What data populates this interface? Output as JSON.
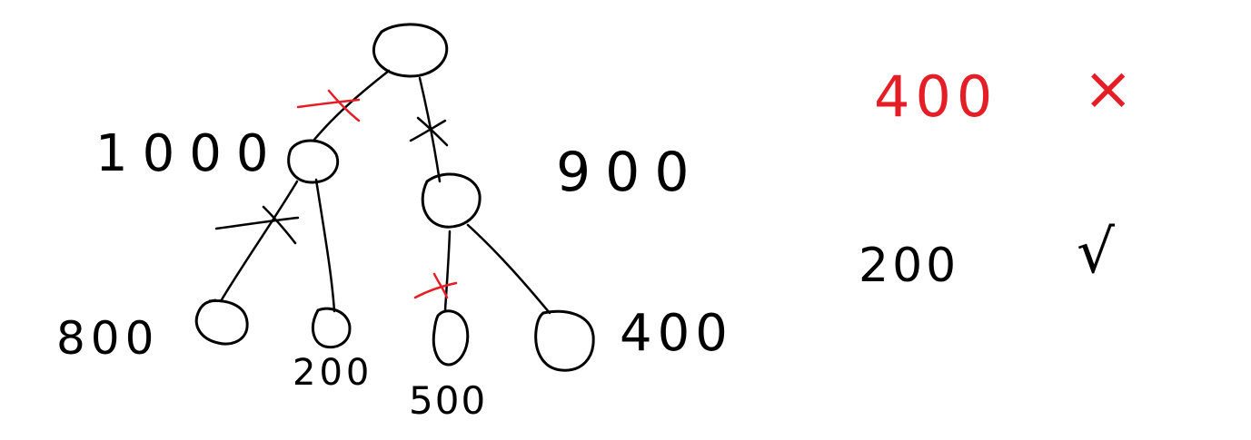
{
  "colors": {
    "ink": "#000000",
    "accent": "#e41e26",
    "background": "#ffffff"
  },
  "tree": {
    "nodes": [
      {
        "id": "root",
        "label": ""
      },
      {
        "id": "left-child",
        "label": "1000"
      },
      {
        "id": "right-child",
        "label": "900"
      },
      {
        "id": "left-left-leaf",
        "label": "800"
      },
      {
        "id": "left-right-leaf",
        "label": "200"
      },
      {
        "id": "right-left-leaf",
        "label": "500"
      },
      {
        "id": "right-right-leaf",
        "label": "400"
      }
    ],
    "edges": [
      {
        "from": "root",
        "to": "left-child",
        "crossed": true,
        "cross_color": "accent"
      },
      {
        "from": "root",
        "to": "right-child",
        "crossed": true,
        "cross_color": "ink"
      },
      {
        "from": "left-child",
        "to": "left-left-leaf",
        "crossed": true,
        "cross_color": "ink"
      },
      {
        "from": "left-child",
        "to": "left-right-leaf",
        "crossed": false
      },
      {
        "from": "right-child",
        "to": "right-left-leaf",
        "crossed": true,
        "cross_color": "accent"
      },
      {
        "from": "right-child",
        "to": "right-right-leaf",
        "crossed": false
      }
    ]
  },
  "results": [
    {
      "value": "400",
      "value_color": "accent",
      "mark": "×",
      "mark_color": "accent"
    },
    {
      "value": "200",
      "value_color": "ink",
      "mark": "√",
      "mark_color": "ink"
    }
  ]
}
